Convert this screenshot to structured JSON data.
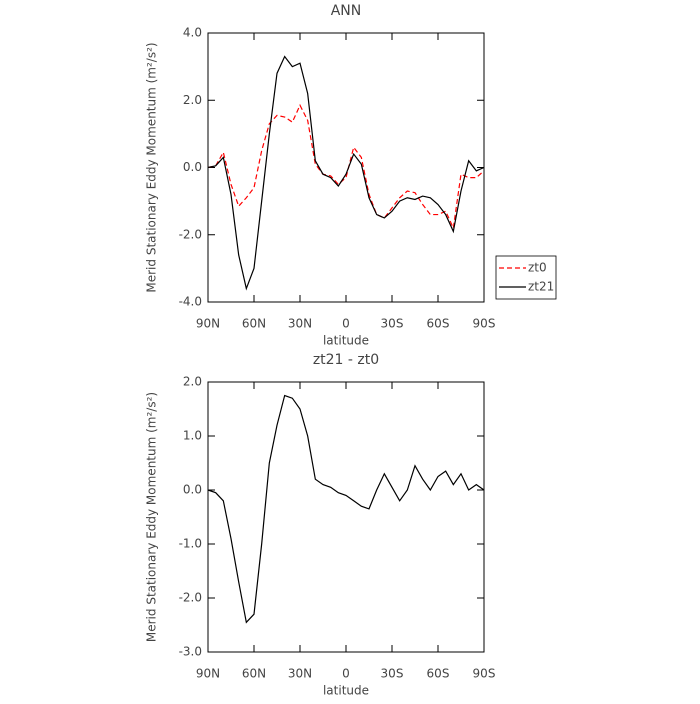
{
  "chart_data": [
    {
      "type": "line",
      "title": "ANN",
      "xlabel": "latitude",
      "ylabel": "Merid Stationary Eddy Momentum (m²/s²)",
      "x": [
        90,
        85,
        80,
        75,
        70,
        65,
        60,
        55,
        50,
        45,
        40,
        35,
        30,
        25,
        20,
        15,
        10,
        5,
        0,
        -5,
        -10,
        -15,
        -20,
        -25,
        -30,
        -35,
        -40,
        -45,
        -50,
        -55,
        -60,
        -65,
        -70,
        -75,
        -80,
        -85,
        -90
      ],
      "xlim": [
        90,
        -90
      ],
      "xticks": [
        {
          "value": 90,
          "label": "90N"
        },
        {
          "value": 60,
          "label": "60N"
        },
        {
          "value": 30,
          "label": "30N"
        },
        0,
        {
          "value": -30,
          "label": "30S"
        },
        {
          "value": -60,
          "label": "60S"
        },
        {
          "value": -90,
          "label": "90S"
        }
      ],
      "ylim": [
        -4,
        4
      ],
      "yticks": [
        {
          "value": -4,
          "label": "-4.0"
        },
        {
          "value": -2,
          "label": "-2.0"
        },
        {
          "value": 0,
          "label": "0.0"
        },
        {
          "value": 2,
          "label": "2.0"
        },
        {
          "value": 4,
          "label": "4.0"
        }
      ],
      "legend": "right",
      "series": [
        {
          "name": "zt0",
          "color": "#ff0000",
          "linestyle": "dashed",
          "values": [
            0.0,
            0.05,
            0.45,
            -0.5,
            -1.15,
            -0.9,
            -0.6,
            0.5,
            1.3,
            1.55,
            1.5,
            1.35,
            1.85,
            1.4,
            0.1,
            -0.2,
            -0.25,
            -0.5,
            -0.3,
            0.6,
            0.3,
            -0.8,
            -1.4,
            -1.5,
            -1.2,
            -0.9,
            -0.7,
            -0.75,
            -1.1,
            -1.4,
            -1.4,
            -1.3,
            -1.8,
            -0.2,
            -0.3,
            -0.3,
            -0.1
          ]
        },
        {
          "name": "zt21",
          "color": "#000000",
          "linestyle": "solid",
          "values": [
            0.0,
            0.05,
            0.3,
            -0.8,
            -2.6,
            -3.6,
            -3.0,
            -1.0,
            1.0,
            2.8,
            3.3,
            3.0,
            3.1,
            2.2,
            0.2,
            -0.2,
            -0.3,
            -0.55,
            -0.2,
            0.4,
            0.1,
            -0.9,
            -1.4,
            -1.5,
            -1.3,
            -1.0,
            -0.9,
            -0.95,
            -0.85,
            -0.9,
            -1.1,
            -1.4,
            -1.9,
            -0.7,
            0.2,
            -0.1,
            0.0
          ]
        }
      ]
    },
    {
      "type": "line",
      "title": "zt21 - zt0",
      "xlabel": "latitude",
      "ylabel": "Merid Stationary Eddy Momentum (m²/s²)",
      "x": [
        90,
        85,
        80,
        75,
        70,
        65,
        60,
        55,
        50,
        45,
        40,
        35,
        30,
        25,
        20,
        15,
        10,
        5,
        0,
        -5,
        -10,
        -15,
        -20,
        -25,
        -30,
        -35,
        -40,
        -45,
        -50,
        -55,
        -60,
        -65,
        -70,
        -75,
        -80,
        -85,
        -90
      ],
      "xlim": [
        90,
        -90
      ],
      "xticks": [
        {
          "value": 90,
          "label": "90N"
        },
        {
          "value": 60,
          "label": "60N"
        },
        {
          "value": 30,
          "label": "30N"
        },
        0,
        {
          "value": -30,
          "label": "30S"
        },
        {
          "value": -60,
          "label": "60S"
        },
        {
          "value": -90,
          "label": "90S"
        }
      ],
      "ylim": [
        -3,
        2
      ],
      "yticks": [
        {
          "value": -3,
          "label": "-3.0"
        },
        {
          "value": -2,
          "label": "-2.0"
        },
        {
          "value": -1,
          "label": "-1.0"
        },
        {
          "value": 0,
          "label": "0.0"
        },
        {
          "value": 1,
          "label": "1.0"
        },
        {
          "value": 2,
          "label": "2.0"
        }
      ],
      "series": [
        {
          "color": "#000000",
          "linestyle": "solid",
          "values": [
            0.0,
            -0.05,
            -0.2,
            -0.9,
            -1.7,
            -2.45,
            -2.3,
            -1.0,
            0.5,
            1.2,
            1.75,
            1.7,
            1.5,
            1.0,
            0.2,
            0.1,
            0.05,
            -0.05,
            -0.1,
            -0.2,
            -0.3,
            -0.35,
            0.0,
            0.3,
            0.05,
            -0.2,
            0.0,
            0.45,
            0.2,
            0.0,
            0.25,
            0.35,
            0.1,
            0.3,
            0.0,
            0.1,
            0.0
          ]
        }
      ]
    }
  ]
}
